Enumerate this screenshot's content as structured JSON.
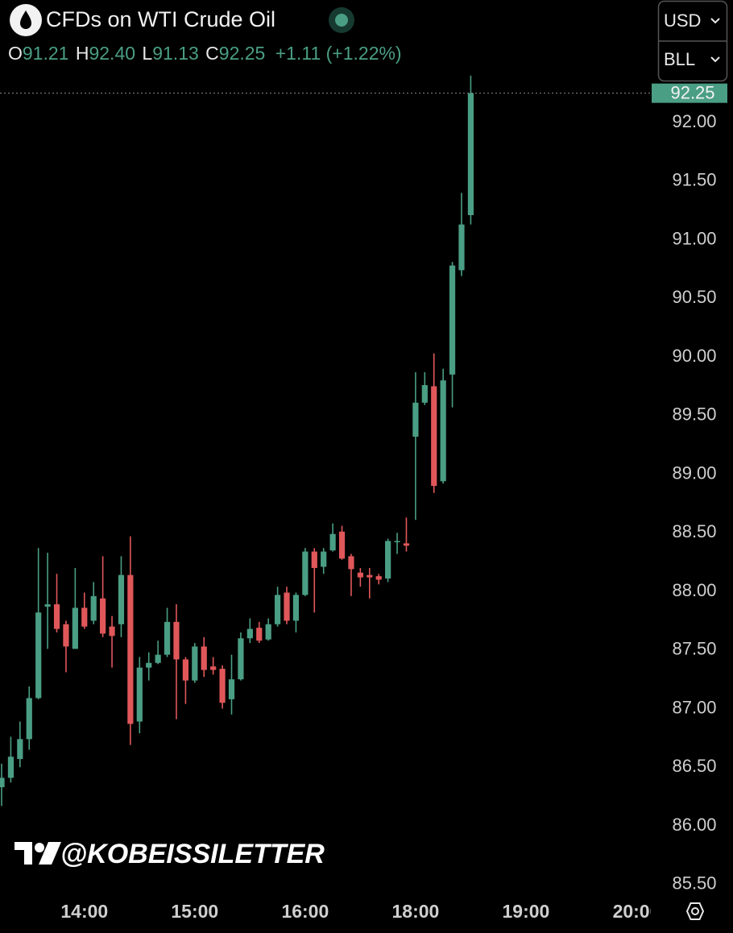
{
  "header": {
    "title": "CFDs on WTI Crude Oil",
    "ohlc": [
      {
        "label": "O",
        "value": "91.21"
      },
      {
        "label": "H",
        "value": "92.40"
      },
      {
        "label": "L",
        "value": "91.13"
      },
      {
        "label": "C",
        "value": "92.25"
      }
    ],
    "change": "+1.11 (+1.22%)",
    "currency": "USD",
    "unit": "BLL",
    "watermark": "@KOBEISSILETTER"
  },
  "chart_data": {
    "type": "candlestick",
    "categories": [
      null,
      null,
      null,
      null,
      null,
      null,
      null,
      null,
      null,
      "14:00",
      null,
      null,
      null,
      null,
      null,
      null,
      null,
      null,
      null,
      null,
      null,
      "15:00",
      null,
      null,
      null,
      null,
      null,
      null,
      null,
      null,
      null,
      null,
      null,
      "16:00",
      null,
      null,
      null,
      null,
      null,
      null,
      null,
      null,
      null,
      null,
      null,
      "18:00",
      null,
      null,
      null,
      null,
      null,
      null,
      null,
      null,
      null,
      null,
      null,
      "19:00",
      null,
      null,
      null,
      null,
      null,
      null,
      null,
      null,
      null,
      null,
      null,
      "20:00",
      null
    ],
    "open": [
      86.33,
      86.41,
      86.57,
      86.74,
      87.09,
      87.87,
      87.89,
      87.72,
      87.51,
      87.86,
      87.75,
      87.94,
      87.7,
      87.72,
      88.14,
      86.89,
      87.35,
      87.39,
      87.46,
      87.74,
      87.42,
      87.24,
      87.53,
      87.36,
      87.34,
      87.08,
      87.25,
      87.6,
      87.69,
      87.59,
      87.72,
      87.99,
      87.75,
      87.97,
      88.34,
      88.21,
      88.35,
      88.51,
      88.3,
      88.16,
      88.14,
      88.13,
      88.11,
      88.42,
      88.41,
      89.32,
      89.61,
      89.75,
      88.94,
      89.85,
      90.74,
      91.21,
      null,
      null,
      null,
      null,
      null,
      null,
      null,
      null,
      null,
      null,
      null,
      null,
      null,
      null,
      null,
      null,
      null,
      null,
      null
    ],
    "high": [
      86.53,
      86.76,
      86.89,
      87.19,
      88.37,
      88.33,
      88.15,
      87.75,
      88.2,
      87.99,
      88.08,
      88.3,
      87.79,
      88.3,
      88.47,
      87.44,
      87.48,
      87.58,
      87.86,
      87.89,
      87.44,
      87.56,
      87.61,
      87.44,
      87.37,
      87.46,
      87.65,
      87.77,
      87.74,
      87.77,
      88.04,
      88.04,
      87.99,
      88.37,
      88.37,
      88.37,
      88.58,
      88.56,
      88.32,
      88.2,
      88.2,
      88.15,
      88.45,
      88.5,
      88.63,
      89.87,
      89.87,
      90.03,
      89.9,
      90.81,
      91.4,
      92.4,
      null,
      null,
      null,
      null,
      null,
      null,
      null,
      null,
      null,
      null,
      null,
      null,
      null,
      null,
      null,
      null,
      null,
      null,
      null
    ],
    "low": [
      86.17,
      86.37,
      86.5,
      86.65,
      87.08,
      87.51,
      87.65,
      87.31,
      87.51,
      87.68,
      87.72,
      87.61,
      87.35,
      87.61,
      86.69,
      86.79,
      87.24,
      87.38,
      87.44,
      86.91,
      87.04,
      87.22,
      87.27,
      87.29,
      87.0,
      86.95,
      87.24,
      87.56,
      87.56,
      87.58,
      87.7,
      87.72,
      87.65,
      87.96,
      87.82,
      88.15,
      88.34,
      88.27,
      87.96,
      88.04,
      87.94,
      88.06,
      88.08,
      88.32,
      88.34,
      88.61,
      89.59,
      88.84,
      88.92,
      89.57,
      90.69,
      91.13,
      null,
      null,
      null,
      null,
      null,
      null,
      null,
      null,
      null,
      null,
      null,
      null,
      null,
      null,
      null,
      null,
      null,
      null,
      null
    ],
    "close": [
      86.41,
      86.59,
      86.74,
      87.09,
      87.82,
      87.89,
      87.68,
      87.53,
      87.86,
      87.7,
      87.96,
      87.64,
      87.62,
      88.14,
      86.87,
      87.35,
      87.39,
      87.46,
      87.74,
      87.42,
      87.24,
      87.53,
      87.33,
      87.33,
      87.05,
      87.25,
      87.6,
      87.68,
      87.58,
      87.72,
      87.97,
      87.75,
      87.97,
      88.34,
      88.2,
      88.34,
      88.49,
      88.28,
      88.19,
      88.12,
      88.12,
      88.1,
      88.43,
      88.43,
      88.39,
      89.61,
      89.76,
      88.9,
      89.8,
      90.78,
      91.13,
      92.25,
      null,
      null,
      null,
      null,
      null,
      null,
      null,
      null,
      null,
      null,
      null,
      null,
      null,
      null,
      null,
      null,
      null,
      null,
      null
    ],
    "up_color": "#4a9e84",
    "down_color": "#e0575a",
    "ylim": [
      85.416,
      93.045
    ],
    "yticks": [
      {
        "value": 85.5,
        "label": "85.50"
      },
      {
        "value": 86,
        "label": "86.00"
      },
      {
        "value": 86.5,
        "label": "86.50"
      },
      {
        "value": 87,
        "label": "87.00"
      },
      {
        "value": 87.5,
        "label": "87.50"
      },
      {
        "value": 88,
        "label": "88.00"
      },
      {
        "value": 88.5,
        "label": "88.50"
      },
      {
        "value": 89,
        "label": "89.00"
      },
      {
        "value": 89.5,
        "label": "89.50"
      },
      {
        "value": 90,
        "label": "90.00"
      },
      {
        "value": 90.5,
        "label": "90.50"
      },
      {
        "value": 91,
        "label": "91.00"
      },
      {
        "value": 91.5,
        "label": "91.50"
      },
      {
        "value": 92,
        "label": "92.00"
      }
    ],
    "grid": false
  }
}
